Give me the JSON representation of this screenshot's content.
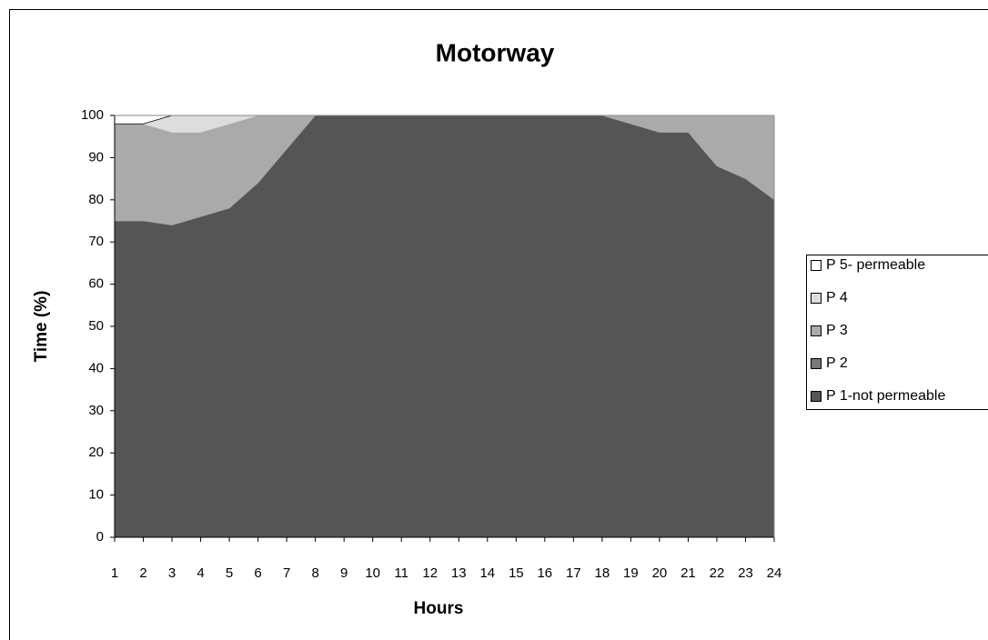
{
  "chart_data": {
    "type": "stacked_area",
    "title": "Motorway",
    "x_label": "Hours",
    "y_label": "Time (%)",
    "categories": [
      "1",
      "2",
      "3",
      "4",
      "5",
      "6",
      "7",
      "8",
      "9",
      "10",
      "11",
      "12",
      "13",
      "14",
      "15",
      "16",
      "17",
      "18",
      "19",
      "20",
      "21",
      "22",
      "23",
      "24"
    ],
    "series": [
      {
        "name": "P 1-not permeable",
        "color": "#555555",
        "values": [
          75,
          75,
          74,
          76,
          78,
          84,
          92,
          100,
          100,
          100,
          100,
          100,
          100,
          100,
          100,
          100,
          100,
          100,
          98,
          96,
          96,
          88,
          85,
          80
        ]
      },
      {
        "name": "P 2",
        "color": "#777777",
        "values": [
          0,
          0,
          0,
          0,
          0,
          0,
          0,
          0,
          0,
          0,
          0,
          0,
          0,
          0,
          0,
          0,
          0,
          0,
          0,
          0,
          0,
          0,
          0,
          0
        ]
      },
      {
        "name": "P 3",
        "color": "#aaaaaa",
        "values": [
          23,
          23,
          22,
          20,
          20,
          16,
          8,
          0,
          0,
          0,
          0,
          0,
          0,
          0,
          0,
          0,
          0,
          0,
          2,
          4,
          4,
          12,
          15,
          20
        ]
      },
      {
        "name": "P 4",
        "color": "#dddddd",
        "values": [
          0,
          0,
          4,
          4,
          2,
          0,
          0,
          0,
          0,
          0,
          0,
          0,
          0,
          0,
          0,
          0,
          0,
          0,
          0,
          0,
          0,
          0,
          0,
          0
        ]
      },
      {
        "name": "P 5- permeable",
        "color": "#ffffff",
        "values": [
          2,
          2,
          0,
          0,
          0,
          0,
          0,
          0,
          0,
          0,
          0,
          0,
          0,
          0,
          0,
          0,
          0,
          0,
          0,
          0,
          0,
          0,
          0,
          0
        ]
      }
    ],
    "ylim": [
      0,
      100
    ],
    "yticks": [
      0,
      10,
      20,
      30,
      40,
      50,
      60,
      70,
      80,
      90,
      100
    ],
    "legend": "right"
  }
}
